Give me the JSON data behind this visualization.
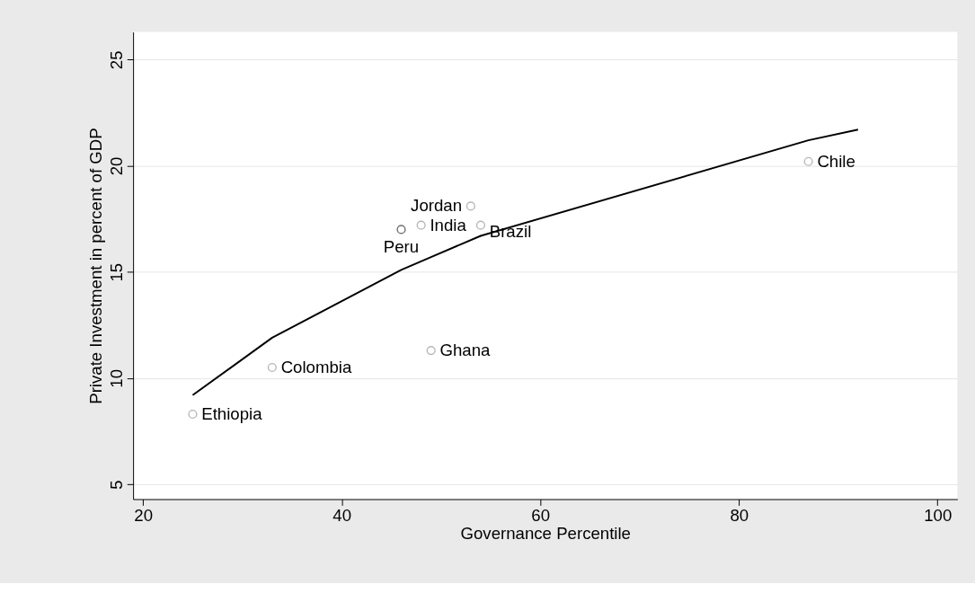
{
  "chart_data": {
    "type": "scatter",
    "xlabel": "Governance Percentile",
    "ylabel": "Private Investment in percent of GDP",
    "xlim": [
      19,
      102
    ],
    "ylim": [
      4.3,
      26.3
    ],
    "xticks": [
      20,
      40,
      60,
      80,
      100
    ],
    "yticks": [
      5,
      10,
      15,
      20,
      25
    ],
    "grid": "y",
    "series": [
      {
        "marker": "circle",
        "x": [
          25,
          33,
          49,
          46,
          48,
          53,
          54,
          87
        ],
        "values": [
          8.3,
          10.5,
          11.3,
          17.0,
          17.2,
          18.1,
          17.2,
          20.2
        ],
        "colors": [
          "#999999",
          "#999999",
          "#999999",
          "#333333",
          "#999999",
          "#999999",
          "#999999",
          "#999999"
        ]
      },
      {
        "type": "line",
        "marker": "none",
        "color": "#000000",
        "x": [
          25,
          33,
          46,
          49,
          54,
          87,
          92
        ],
        "values": [
          9.2,
          11.9,
          15.1,
          15.7,
          16.7,
          21.2,
          21.7
        ]
      }
    ],
    "annotations": [
      {
        "text": "Ethiopia",
        "x": 25,
        "y": 8.3
      },
      {
        "text": "Colombia",
        "x": 33,
        "y": 10.5
      },
      {
        "text": "Ghana",
        "x": 49,
        "y": 11.3
      },
      {
        "text": "Peru",
        "x": 46,
        "y": 17.0
      },
      {
        "text": "India",
        "x": 48,
        "y": 17.2
      },
      {
        "text": "Jordan",
        "x": 53,
        "y": 18.1
      },
      {
        "text": "Brazil",
        "x": 54,
        "y": 17.2
      },
      {
        "text": "Chile",
        "x": 87,
        "y": 20.2
      }
    ]
  }
}
